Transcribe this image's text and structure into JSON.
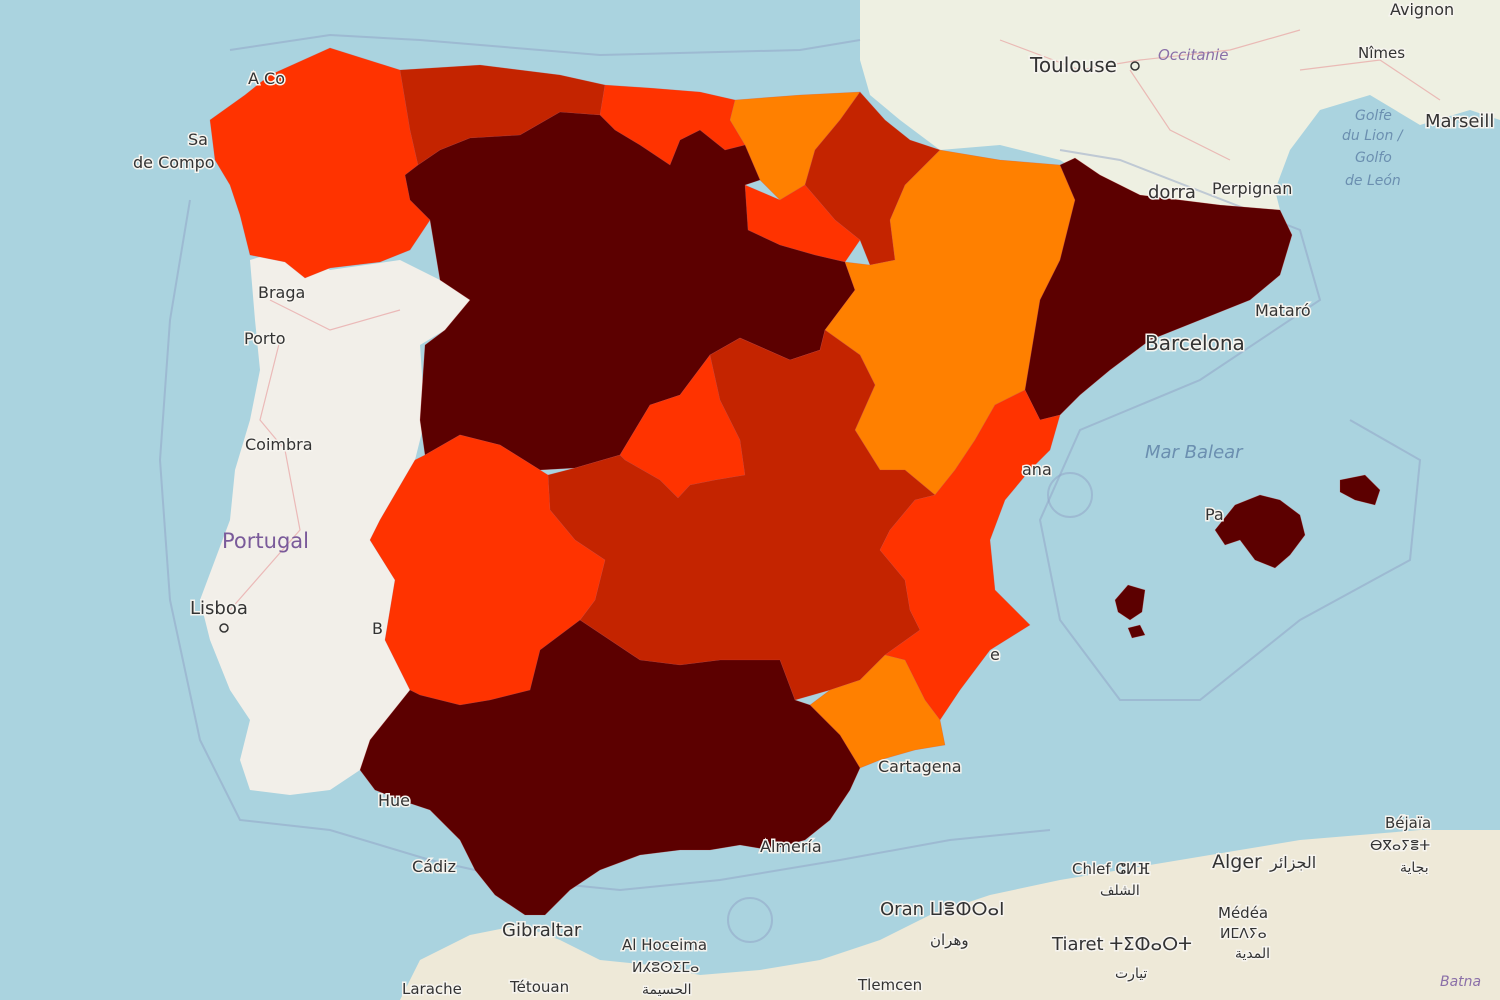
{
  "map": {
    "palette": {
      "water": "#aad3df",
      "land_france": "#eef0e2",
      "land_portugal": "#f2efe9",
      "land_africa": "#eee9d8",
      "level_1": "#ff8000",
      "level_2": "#ff3300",
      "level_3": "#c42400",
      "level_4": "#5c0000"
    },
    "regions": [
      {
        "name": "Galicia",
        "level": 2
      },
      {
        "name": "Asturias",
        "level": 3
      },
      {
        "name": "Cantabria",
        "level": 2
      },
      {
        "name": "País Vasco",
        "level": 1
      },
      {
        "name": "Navarra",
        "level": 3
      },
      {
        "name": "La Rioja",
        "level": 2
      },
      {
        "name": "Castilla y León",
        "level": 4
      },
      {
        "name": "Aragón",
        "level": 1
      },
      {
        "name": "Cataluña",
        "level": 4
      },
      {
        "name": "Madrid",
        "level": 2
      },
      {
        "name": "Castilla-La Mancha",
        "level": 3
      },
      {
        "name": "Extremadura",
        "level": 2
      },
      {
        "name": "Comunidad Valenciana",
        "level": 2
      },
      {
        "name": "Murcia",
        "level": 1
      },
      {
        "name": "Andalucía",
        "level": 4
      },
      {
        "name": "Islas Baleares",
        "level": 4
      }
    ],
    "labels": {
      "avignon": "Avignon",
      "toulouse": "Toulouse",
      "occitanie": "Occitanie",
      "nimes": "Nîmes",
      "marseille": "Marseill",
      "golfe_line1": "Golfe",
      "golfe_line2": "du Lion /",
      "golfe_line3": "Golfo",
      "golfe_line4": "de León",
      "andorra": "dorra",
      "perpignan": "Perpignan",
      "a_coruna": "A Co",
      "santiago_1": "Sa",
      "santiago_2": "de Compo",
      "braga": "Braga",
      "porto": "Porto",
      "coimbra": "Coimbra",
      "portugal": "Portugal",
      "lisboa": "Lisboa",
      "b_fragment": "B",
      "mataro": "Mataró",
      "barcelona": "Barcelona",
      "mar_balear": "Mar Balear",
      "pa_fragment": "Pa",
      "ana_fragment": "ana",
      "e_fragment": "e",
      "cartagena": "Cartagena",
      "hue_fragment": "Hue",
      "cadiz": "Cádiz",
      "almeria": "Almería",
      "gibraltar": "Gibraltar",
      "al_hoceima": "Al Hoceima",
      "al_hoceima_tif": "ⵍⵃⵓⵙⵉⵎⴰ",
      "al_hoceima_ar": "الحسيمة",
      "tetouan": "Tétouan",
      "larache": "Larache",
      "tlemcen": "Tlemcen",
      "oran": "Oran ⵡⴻⵀⵔⴰⵏ",
      "oran_ar": "وهران",
      "chlef": "Chlef ⵛⵍⴼ",
      "chlef_ar": "الشلف",
      "alger": "Alger",
      "alger_ar": "الجزائر",
      "bejaia": "Béjaïa",
      "bejaia_tif": "ⴱⴳⴰⵢⴻⵜ",
      "bejaia_ar": "بجاية",
      "medea": "Médéa",
      "medea_tif": "ⵍⵎⴷⵢⴰ",
      "medea_ar": "المدية",
      "tiaret": "Tiaret ⵜⵉⵀⴰⵔⵜ",
      "tiaret_ar": "تيارت",
      "batna": "Batna"
    }
  }
}
